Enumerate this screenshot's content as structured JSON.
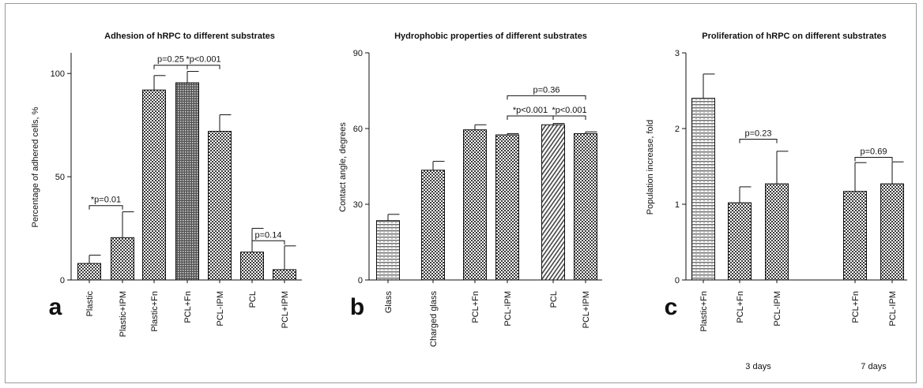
{
  "chart_data": [
    {
      "type": "bar",
      "panel_label": "a",
      "title": "Adhesion of hRPC to different substrates",
      "ylabel": "Percentage of adhered cells, %",
      "ylim": [
        0,
        110
      ],
      "yticks": [
        0,
        50,
        100
      ],
      "categories": [
        "Plastic",
        "Plastic+IPM",
        "Plastic+Fn",
        "PCL+Fn",
        "PCL-IPM",
        "PCL",
        "PCL+IPM"
      ],
      "values": [
        8,
        20.5,
        92,
        95.5,
        72,
        13.5,
        5
      ],
      "errors": [
        4,
        12.5,
        7,
        5.5,
        8,
        11.5,
        11.5
      ],
      "patterns": [
        "dots",
        "dots",
        "dots",
        "dense",
        "dots",
        "dots",
        "dots"
      ],
      "annotations": [
        {
          "text": "*p=0.01",
          "from": 0,
          "to": 1,
          "y": 36
        },
        {
          "text": "p=0.25",
          "from": 2,
          "to": 3,
          "y": 104
        },
        {
          "text": "*p<0.001",
          "from": 3,
          "to": 4,
          "y": 104
        },
        {
          "text": "p=0.14",
          "from": 5,
          "to": 6,
          "y": 19
        }
      ]
    },
    {
      "type": "bar",
      "panel_label": "b",
      "title": "Hydrophobic properties of different substrates",
      "ylabel": "Contact angle, degrees",
      "ylim": [
        0,
        90
      ],
      "yticks": [
        0,
        30,
        60,
        90
      ],
      "categories": [
        "Glass",
        "Charged glass",
        "PCL+Fn",
        "PCL-IPM",
        "PCL",
        "PCL+IPM"
      ],
      "values": [
        23.5,
        43.5,
        59.5,
        57.5,
        61.5,
        58
      ],
      "errors": [
        2.5,
        3.5,
        2,
        0.5,
        0.5,
        0.7
      ],
      "patterns": [
        "hlines",
        "dots",
        "dots",
        "dots",
        "diag",
        "dots"
      ],
      "annotations": [
        {
          "text": "p=0.36",
          "from": 3,
          "to": 5,
          "y": 73
        },
        {
          "text": "*p<0.001",
          "from": 3,
          "to": 4,
          "y": 65
        },
        {
          "text": "*p<0.001",
          "from": 4,
          "to": 5,
          "y": 65
        }
      ]
    },
    {
      "type": "bar",
      "panel_label": "c",
      "title": "Proliferation of hRPC on different substrates",
      "ylabel": "Population increase, fold",
      "ylim": [
        0,
        3
      ],
      "yticks": [
        0,
        1,
        2,
        3
      ],
      "categories": [
        "Plastic+Fn",
        "PCL+Fn",
        "PCL-IPM",
        "PCL+Fn",
        "PCL-IPM"
      ],
      "values": [
        2.4,
        1.02,
        1.27,
        1.17,
        1.27
      ],
      "errors": [
        0.32,
        0.21,
        0.43,
        0.38,
        0.29
      ],
      "patterns": [
        "hlines",
        "dots",
        "dots",
        "dots",
        "dots"
      ],
      "groups": [
        {
          "label": "3 days",
          "indices": [
            1,
            2
          ]
        },
        {
          "label": "7 days",
          "indices": [
            3,
            4
          ]
        }
      ],
      "annotations": [
        {
          "text": "p=0.23",
          "from": 1,
          "to": 2,
          "y": 1.86
        },
        {
          "text": "p=0.69",
          "from": 3,
          "to": 4,
          "y": 1.62
        }
      ]
    }
  ]
}
